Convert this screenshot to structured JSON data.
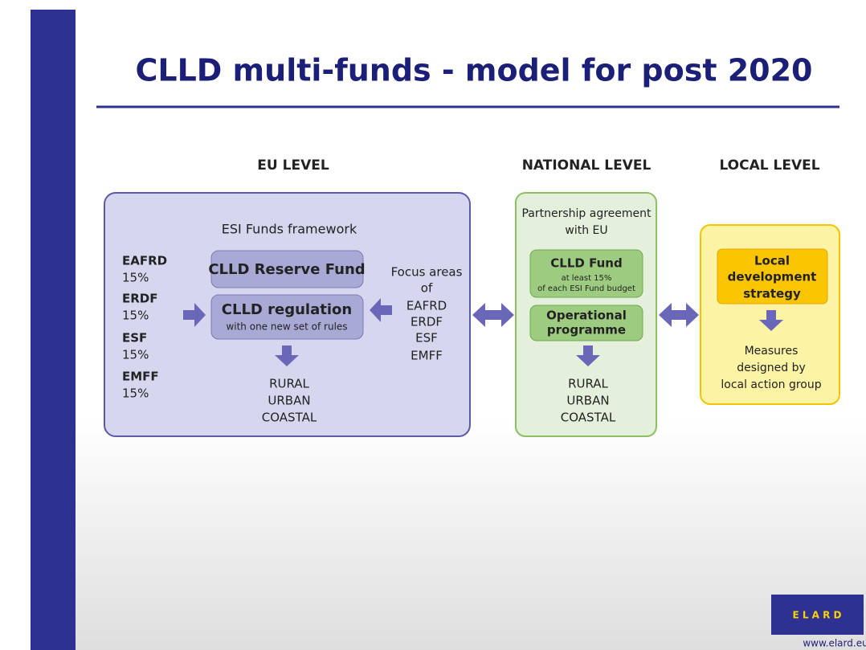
{
  "title": "CLLD multi-funds  - model for post 2020",
  "levels": {
    "eu": "EU LEVEL",
    "national": "NATIONAL LEVEL",
    "local": "LOCAL LEVEL"
  },
  "eu_box": {
    "framework": "ESI Funds framework",
    "funds": [
      {
        "name": "EAFRD",
        "share": "15%"
      },
      {
        "name": "ERDF",
        "share": "15%"
      },
      {
        "name": "ESF",
        "share": "15%"
      },
      {
        "name": "EMFF",
        "share": "15%"
      }
    ],
    "reserve_fund": "CLLD Reserve Fund",
    "regulation": {
      "title": "CLLD regulation",
      "subtitle": "with one new set of rules"
    },
    "focus_areas": [
      "Focus areas",
      "of",
      "EAFRD",
      "ERDF",
      "ESF",
      "EMFF"
    ],
    "outcomes": [
      "RURAL",
      "URBAN",
      "COASTAL"
    ]
  },
  "national_box": {
    "agreement": [
      "Partnership agreement",
      "with EU"
    ],
    "fund": {
      "title": "CLLD Fund",
      "lines": [
        "at least 15%",
        "of each ESI Fund budget"
      ]
    },
    "programme": [
      "Operational",
      "programme"
    ],
    "outcomes": [
      "RURAL",
      "URBAN",
      "COASTAL"
    ]
  },
  "local_box": {
    "strategy": [
      "Local",
      "development",
      "strategy"
    ],
    "measures": [
      "Measures",
      "designed by",
      "local action group"
    ]
  },
  "logo": {
    "text": "E L A R D",
    "url": "www.elard.eu"
  }
}
